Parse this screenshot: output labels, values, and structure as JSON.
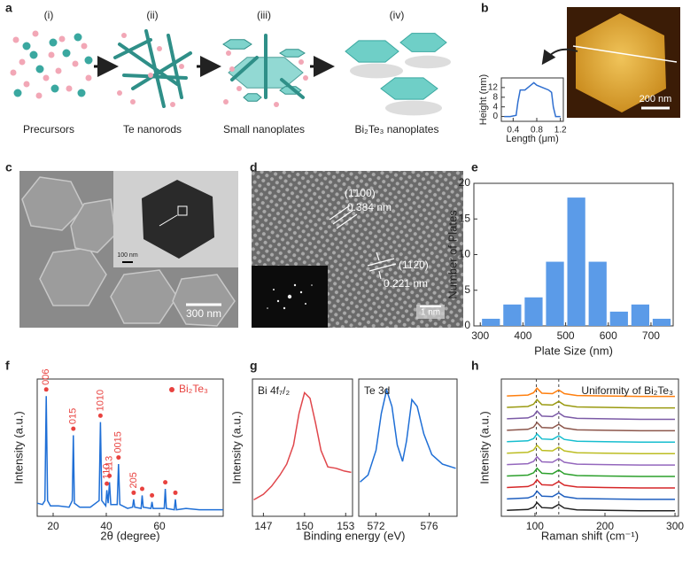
{
  "panel_labels": [
    "a",
    "b",
    "c",
    "d",
    "e",
    "f",
    "g",
    "h"
  ],
  "schematic": {
    "stages": [
      "(i)",
      "(ii)",
      "(iii)",
      "(iv)"
    ],
    "captions": [
      "Precursors",
      "Te nanorods",
      "Small nanoplates",
      "Bi₂Te₃ nanoplates"
    ]
  },
  "afm_image": {
    "scale_bar": "200 nm"
  },
  "sem_image": {
    "scale_bar": "300 nm",
    "inset_scale_bar": "100 nm"
  },
  "hrtem_image": {
    "planes": [
      {
        "label": "(1̄100)",
        "spacing": "0.384 nm"
      },
      {
        "label": "(112̄0)",
        "spacing": "0.221 nm"
      }
    ],
    "scale_bar": "1 nm"
  },
  "chart_data": [
    {
      "type": "line",
      "xlabel": "Length (μm)",
      "ylabel": "Height (nm)",
      "x": [
        0.25,
        0.35,
        0.45,
        0.48,
        0.52,
        0.6,
        0.7,
        0.75,
        0.8,
        0.9,
        1.0,
        1.05,
        1.08,
        1.12,
        1.2
      ],
      "series": [
        {
          "color": "#2f6fd0",
          "values": [
            0,
            0,
            0.5,
            6,
            11,
            11,
            13,
            14,
            13,
            12,
            11,
            10,
            4,
            0,
            0
          ]
        }
      ],
      "xlim": [
        0.2,
        1.25
      ],
      "xticks": [
        0.4,
        0.8,
        1.2
      ],
      "ylim": [
        -2,
        16
      ],
      "yticks": [
        0,
        4,
        8,
        12
      ]
    },
    {
      "type": "histogram",
      "xlabel": "Plate Size (nm)",
      "ylabel": "Number of Plates",
      "bins": [
        300,
        350,
        400,
        450,
        500,
        550,
        600,
        650,
        700,
        750
      ],
      "values": [
        1,
        3,
        4,
        9,
        18,
        9,
        2,
        3,
        1
      ],
      "color": "#5b9be8",
      "xlim": [
        285,
        752
      ],
      "xticks": [
        300,
        400,
        500,
        600,
        700
      ],
      "ylim": [
        0,
        20
      ],
      "yticks": [
        0,
        5,
        10,
        15,
        20
      ]
    },
    {
      "type": "line",
      "xlabel": "2θ (degree)",
      "ylabel": "Intensity (a.u.)",
      "x": [
        14,
        16,
        16.9,
        17.4,
        17.9,
        19,
        22,
        26,
        27.2,
        27.6,
        28.0,
        30,
        34,
        37.3,
        37.8,
        38.3,
        39.8,
        40.2,
        40.7,
        41.2,
        41.7,
        44.1,
        44.6,
        45.1,
        48,
        49.9,
        50.3,
        50.7,
        53.1,
        53.5,
        53.9,
        56.8,
        57.2,
        57.6,
        61.8,
        62.2,
        62.6,
        65.6,
        66,
        66.4,
        70,
        75,
        80,
        84
      ],
      "series": [
        {
          "color": "#1f6fd6",
          "values": [
            10,
            9,
            12,
            92,
            12,
            8,
            8,
            7,
            12,
            62,
            10,
            7,
            7,
            12,
            72,
            12,
            8,
            20,
            10,
            26,
            9,
            9,
            40,
            9,
            6,
            7,
            13,
            7,
            6,
            16,
            7,
            6,
            11,
            6,
            6,
            21,
            6,
            5,
            13,
            5,
            6,
            5,
            5,
            5
          ]
        }
      ],
      "peak_markers": {
        "name": "Bi₂Te₃",
        "color": "#e8423f",
        "x": [
          17.4,
          27.6,
          37.8,
          40.2,
          41.2,
          44.6,
          50.3,
          53.5,
          57.2,
          62.2,
          66
        ],
        "y": [
          97,
          67,
          77,
          25,
          31,
          45,
          18,
          21,
          16,
          26,
          18
        ],
        "labels": [
          "006",
          "015",
          "1010",
          "110",
          "113",
          "0015",
          "205",
          null,
          null,
          null,
          null
        ]
      },
      "xlim": [
        14,
        84
      ],
      "xticks": [
        20,
        40,
        60
      ],
      "ylim": [
        0,
        105
      ]
    },
    {
      "type": "line",
      "xlabel": "Binding energy (eV)",
      "ylabel": "Intensity (a.u.)",
      "annotation": "Bi 4f₇/₂",
      "x": [
        146.3,
        147,
        147.6,
        148.2,
        148.7,
        149.2,
        149.6,
        150,
        150.4,
        150.8,
        151.2,
        151.7,
        152.3,
        152.9,
        153.4
      ],
      "series": [
        {
          "color": "#e0474c",
          "values": [
            12,
            16,
            22,
            30,
            38,
            52,
            75,
            90,
            86,
            68,
            48,
            36,
            35,
            33,
            32
          ]
        }
      ],
      "xlim": [
        146.2,
        153.5
      ],
      "xticks": [
        147,
        150,
        153
      ],
      "ylim": [
        0,
        100
      ]
    },
    {
      "type": "line",
      "annotation": "Te 3d",
      "x": [
        570.8,
        571.4,
        572,
        572.4,
        572.8,
        573.2,
        573.6,
        574,
        574.3,
        574.7,
        575.1,
        575.6,
        576.2,
        577,
        578
      ],
      "series": [
        {
          "color": "#1f6fd6",
          "values": [
            25,
            30,
            48,
            75,
            92,
            80,
            52,
            40,
            55,
            85,
            80,
            60,
            45,
            38,
            35
          ]
        }
      ],
      "xlim": [
        570.7,
        578.1
      ],
      "xticks": [
        572,
        576
      ],
      "ylim": [
        0,
        100
      ]
    },
    {
      "type": "line",
      "xlabel": "Raman shift (cm⁻¹)",
      "ylabel": "Intensity (a.u.)",
      "annotation": "Uniformity of Bi₂Te₃",
      "x": [
        60,
        90,
        98,
        103,
        110,
        125,
        134,
        142,
        160,
        200,
        250,
        300
      ],
      "reference_lines": [
        102,
        134
      ],
      "series": [
        {
          "color": "#222222",
          "values": [
            0.3,
            0.5,
            1,
            2,
            0.9,
            0.8,
            1.6,
            0.8,
            0.4,
            0.3,
            0.2,
            0.2
          ]
        },
        {
          "color": "#1f5fbf",
          "values": [
            2.8,
            3,
            3.5,
            4.5,
            3.4,
            3.3,
            4.1,
            3.3,
            2.9,
            2.8,
            2.7,
            2.7
          ]
        },
        {
          "color": "#d62728",
          "values": [
            5.3,
            5.5,
            6,
            7,
            5.9,
            5.8,
            6.6,
            5.8,
            5.4,
            5.3,
            5.2,
            5.2
          ]
        },
        {
          "color": "#2ca02c",
          "values": [
            7.8,
            8,
            8.5,
            9.5,
            8.4,
            8.3,
            9.1,
            8.3,
            7.9,
            7.8,
            7.7,
            7.7
          ]
        },
        {
          "color": "#9467bd",
          "values": [
            10.3,
            10.5,
            11,
            12,
            10.9,
            10.8,
            11.6,
            10.8,
            10.4,
            10.3,
            10.2,
            10.2
          ]
        },
        {
          "color": "#bcbd22",
          "values": [
            12.8,
            13,
            13.5,
            14.5,
            13.4,
            13.3,
            14.1,
            13.3,
            12.9,
            12.8,
            12.7,
            12.7
          ]
        },
        {
          "color": "#17becf",
          "values": [
            15.3,
            15.5,
            16,
            17,
            15.9,
            15.8,
            16.6,
            15.8,
            15.4,
            15.3,
            15.2,
            15.2
          ]
        },
        {
          "color": "#8c564b",
          "values": [
            17.8,
            18,
            18.5,
            19.5,
            18.4,
            18.3,
            19.1,
            18.3,
            17.9,
            17.8,
            17.7,
            17.7
          ]
        },
        {
          "color": "#7b5aa6",
          "values": [
            20.3,
            20.5,
            21,
            22,
            20.9,
            20.8,
            21.6,
            20.8,
            20.4,
            20.3,
            20.2,
            20.2
          ]
        },
        {
          "color": "#9a9a10",
          "values": [
            22.8,
            23,
            23.5,
            24.5,
            23.4,
            23.3,
            24.1,
            23.3,
            22.9,
            22.8,
            22.7,
            22.7
          ]
        },
        {
          "color": "#ff7f0e",
          "values": [
            25.3,
            25.5,
            26,
            27,
            25.9,
            25.8,
            26.6,
            25.8,
            25.4,
            25.3,
            25.2,
            25.2
          ]
        }
      ],
      "xlim": [
        52,
        305
      ],
      "xticks": [
        100,
        200,
        300
      ],
      "ylim": [
        -1,
        29
      ]
    }
  ]
}
